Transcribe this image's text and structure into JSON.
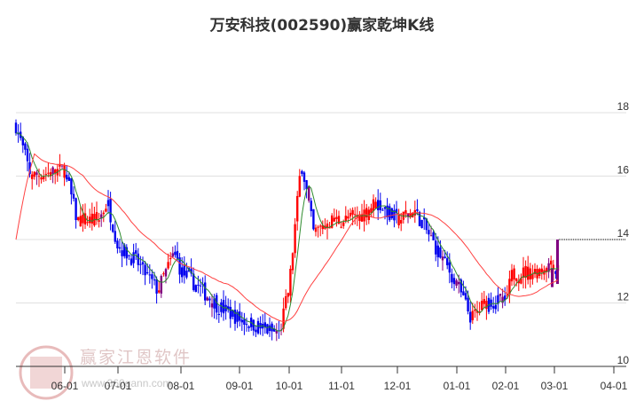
{
  "title": "万安科技(002590)赢家乾坤K线",
  "watermark": {
    "name": "赢家江恩软件",
    "url": "www.360gann.com",
    "seal": [
      "江",
      "赢",
      "恩",
      "家"
    ]
  },
  "colors": {
    "up": "#ff0000",
    "down": "#0000ee",
    "special": "#800080",
    "ma_short": "#2e8b2e",
    "ma_long": "#ff4040",
    "grid": "#e0e0e0",
    "axis": "#333333"
  },
  "chart_data": {
    "type": "candlestick",
    "title": "万安科技(002590)赢家乾坤K线",
    "xlabel": "",
    "ylabel": "",
    "ylim": [
      10,
      18
    ],
    "y_ticks": [
      10,
      12,
      14,
      16,
      18
    ],
    "x_ticks": [
      "06-01",
      "07-01",
      "08-01",
      "09-01",
      "10-01",
      "11-01",
      "12-01",
      "01-01",
      "02-01",
      "03-01",
      "04-01"
    ],
    "grid": true,
    "y_axis_position": "right",
    "series": [
      {
        "name": "price_path_approx",
        "points": [
          {
            "date": "05-18",
            "value": 17.6
          },
          {
            "date": "05-25",
            "value": 16.0
          },
          {
            "date": "06-01",
            "value": 16.2
          },
          {
            "date": "06-08",
            "value": 14.6
          },
          {
            "date": "06-20",
            "value": 14.6
          },
          {
            "date": "06-25",
            "value": 15.2
          },
          {
            "date": "07-01",
            "value": 13.8
          },
          {
            "date": "07-10",
            "value": 13.3
          },
          {
            "date": "07-20",
            "value": 12.4
          },
          {
            "date": "07-28",
            "value": 13.6
          },
          {
            "date": "08-01",
            "value": 13.0
          },
          {
            "date": "08-10",
            "value": 12.5
          },
          {
            "date": "08-20",
            "value": 11.9
          },
          {
            "date": "09-01",
            "value": 11.5
          },
          {
            "date": "09-15",
            "value": 11.2
          },
          {
            "date": "09-25",
            "value": 11.0
          },
          {
            "date": "10-01",
            "value": 12.5
          },
          {
            "date": "10-08",
            "value": 16.5
          },
          {
            "date": "10-15",
            "value": 14.2
          },
          {
            "date": "10-25",
            "value": 14.6
          },
          {
            "date": "11-01",
            "value": 14.6
          },
          {
            "date": "11-10",
            "value": 14.7
          },
          {
            "date": "11-20",
            "value": 15.2
          },
          {
            "date": "12-01",
            "value": 14.6
          },
          {
            "date": "12-10",
            "value": 14.9
          },
          {
            "date": "12-20",
            "value": 13.8
          },
          {
            "date": "01-01",
            "value": 12.6
          },
          {
            "date": "01-10",
            "value": 11.5
          },
          {
            "date": "01-20",
            "value": 12.1
          },
          {
            "date": "02-01",
            "value": 12.0
          },
          {
            "date": "02-05",
            "value": 12.9
          },
          {
            "date": "02-20",
            "value": 13.0
          },
          {
            "date": "03-01",
            "value": 13.3
          },
          {
            "date": "03-02",
            "value": 12.6
          },
          {
            "date": "03-03",
            "value": 14.0
          }
        ]
      },
      {
        "name": "ma_short_green",
        "color": "#2e8b2e"
      },
      {
        "name": "ma_long_red",
        "color": "#ff4040"
      }
    ],
    "annotations": [
      {
        "type": "dashed_hline",
        "value": 14.0,
        "from": "03-01",
        "to": "right_edge"
      }
    ]
  }
}
